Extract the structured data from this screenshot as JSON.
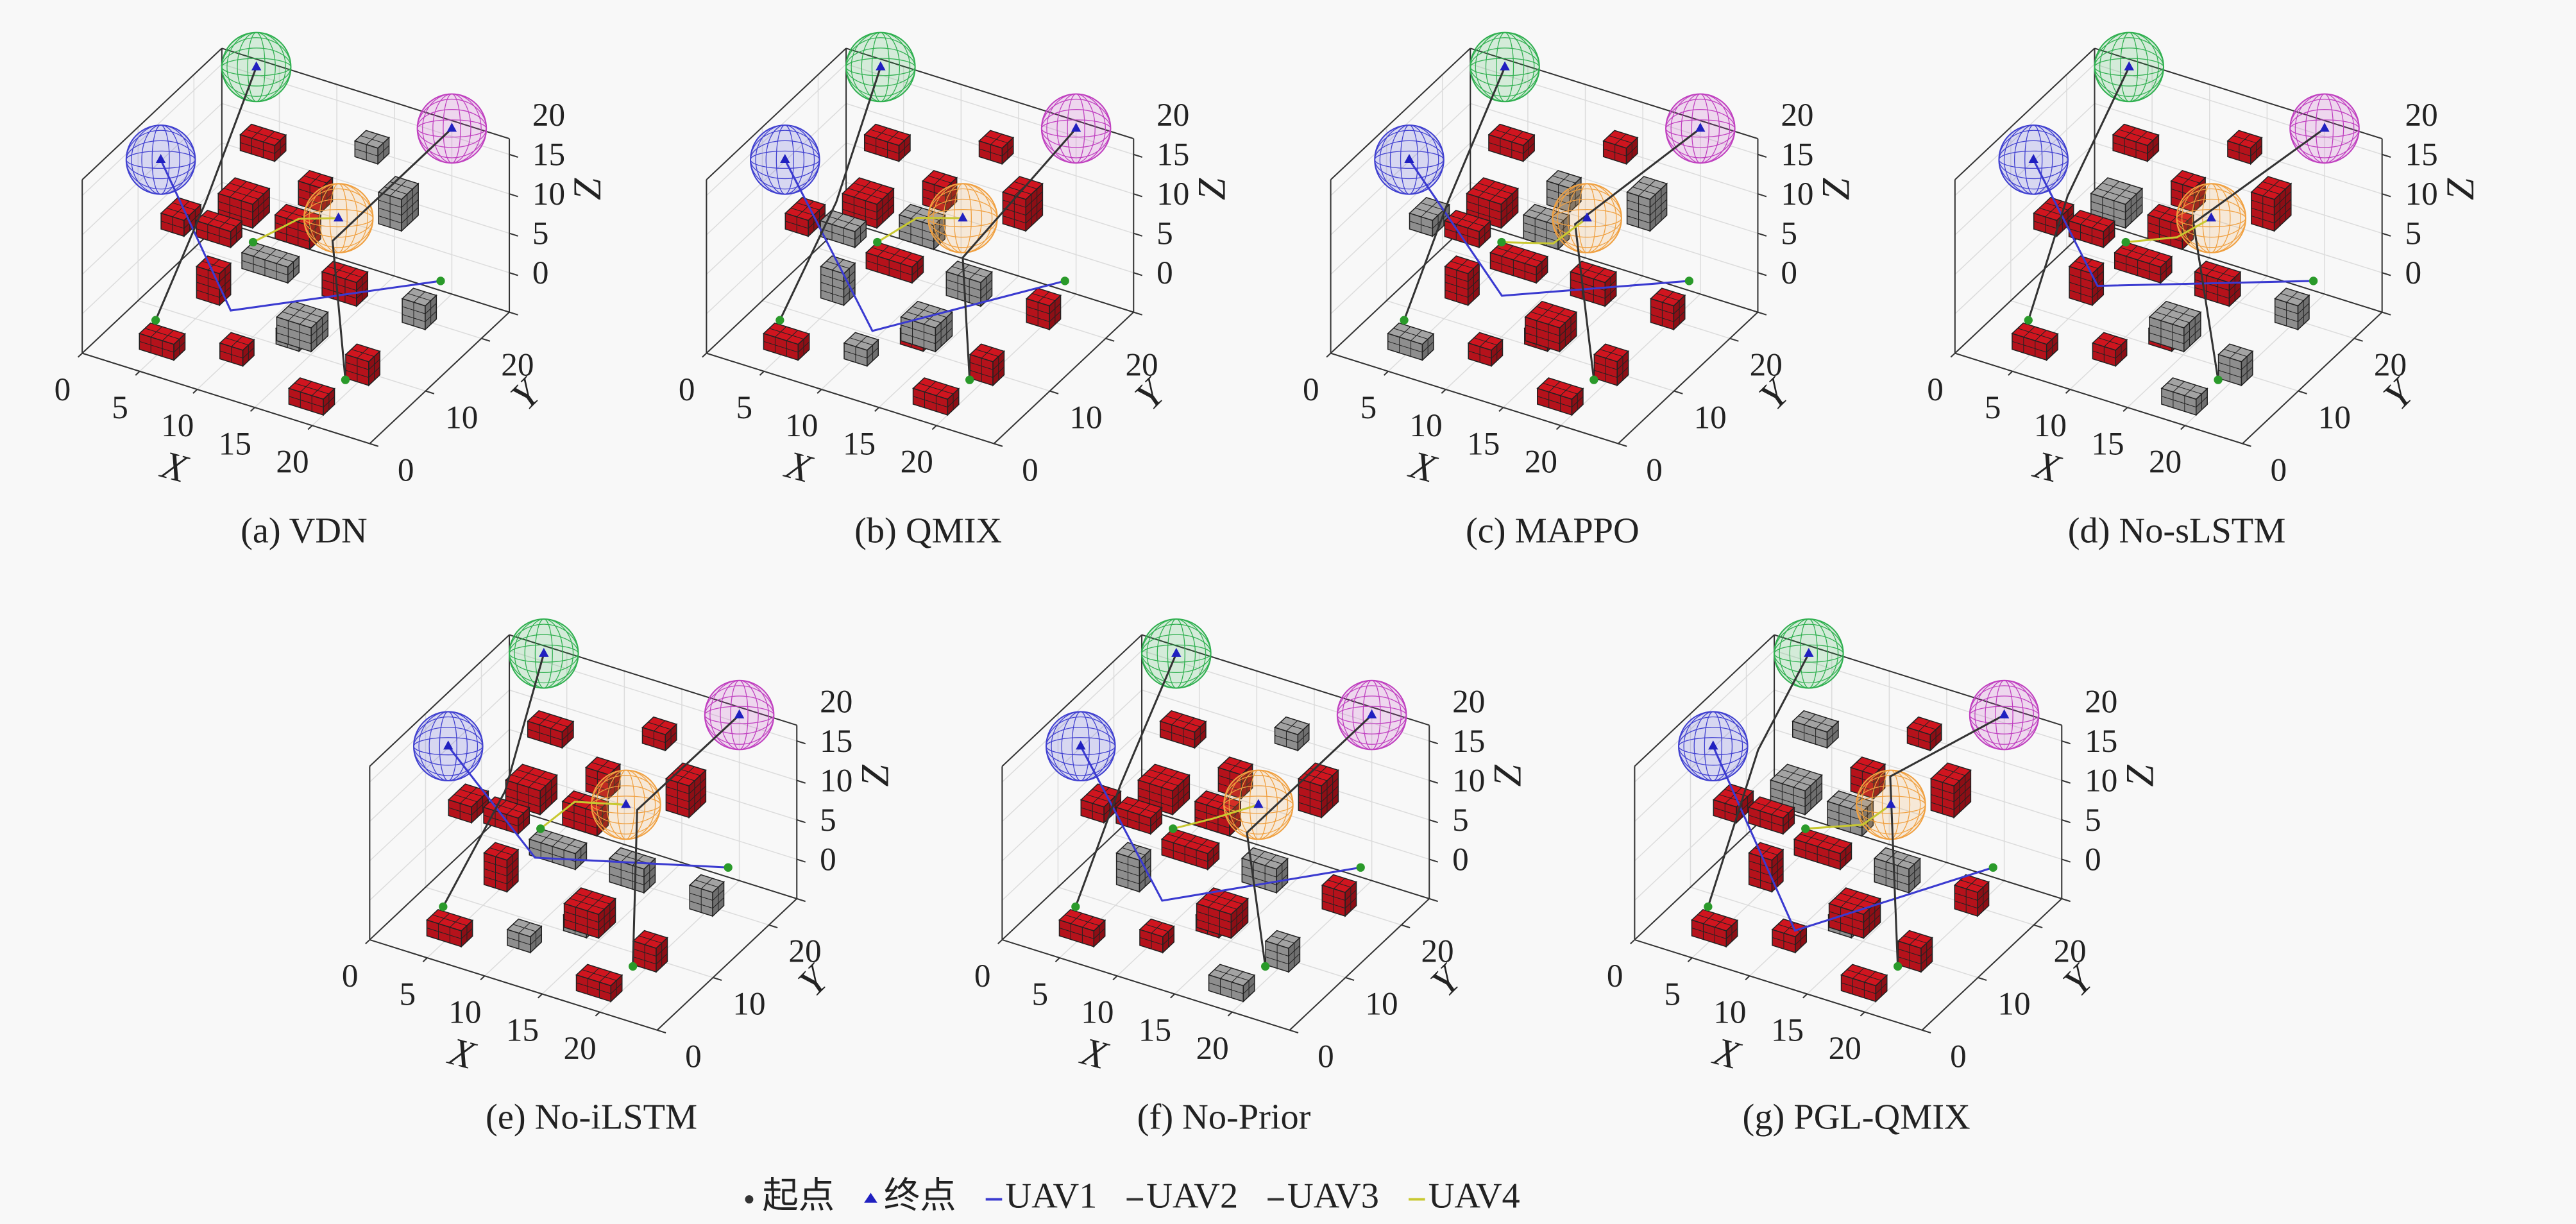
{
  "environment": {
    "obstacles": [
      [
        4,
        2,
        1,
        3,
        2,
        2
      ],
      [
        8,
        4,
        8,
        2,
        2,
        4
      ],
      [
        10,
        8,
        10,
        4,
        2,
        2
      ],
      [
        6,
        12,
        12,
        3,
        3,
        3
      ],
      [
        12,
        14,
        15,
        2,
        2,
        3
      ],
      [
        14,
        6,
        4,
        3,
        3,
        3
      ],
      [
        16,
        10,
        8,
        3,
        2,
        3
      ],
      [
        18,
        16,
        14,
        2,
        3,
        4
      ],
      [
        20,
        6,
        2,
        2,
        2,
        3
      ],
      [
        11,
        2,
        3,
        2,
        2,
        2
      ],
      [
        5,
        18,
        16,
        3,
        2,
        2
      ],
      [
        14,
        20,
        18,
        2,
        2,
        2
      ],
      [
        9,
        16,
        8,
        3,
        2,
        3
      ],
      [
        22,
        12,
        6,
        2,
        2,
        3
      ],
      [
        2,
        10,
        10,
        2,
        3,
        2
      ],
      [
        17,
        2,
        0,
        3,
        2,
        2
      ],
      [
        12,
        10,
        0,
        2,
        2,
        2
      ],
      [
        7,
        6,
        14,
        3,
        2,
        2
      ]
    ],
    "goals": [
      {
        "x": 1,
        "y": 12,
        "z": 17,
        "r": 4,
        "color": "#4040d0"
      },
      {
        "x": 3,
        "y": 25,
        "z": 21,
        "r": 4,
        "color": "#30b050"
      },
      {
        "x": 20,
        "y": 25,
        "z": 21,
        "r": 4,
        "color": "#c040c0"
      },
      {
        "x": 15,
        "y": 15,
        "z": 14,
        "r": 4,
        "color": "#f0a040"
      }
    ]
  },
  "legend": [
    {
      "name": "起点",
      "color": "#333333",
      "marker": "dot"
    },
    {
      "name": "终点",
      "color": "#2020c0",
      "marker": "triangle"
    },
    {
      "name": "UAV1",
      "color": "#3a3ad0",
      "marker": "line"
    },
    {
      "name": "UAV2",
      "color": "#333333",
      "marker": "line"
    },
    {
      "name": "UAV3",
      "color": "#333333",
      "marker": "line"
    },
    {
      "name": "UAV4",
      "color": "#c8c830",
      "marker": "line"
    }
  ],
  "chart_data": [
    {
      "type": "voxel3d",
      "caption": "(a) VDN",
      "xlabel": "X",
      "ylabel": "Y",
      "zlabel": "Z",
      "xlim": [
        0,
        25
      ],
      "ylim": [
        0,
        25
      ],
      "zlim": [
        0,
        22
      ],
      "xticks": [
        0,
        5,
        10,
        15,
        20
      ],
      "yticks": [
        0,
        10,
        20
      ],
      "zticks": [
        0,
        5,
        10,
        15,
        20
      ],
      "obstacle_colors": [
        "#b5121b",
        "#b5121b",
        "#8e8e8e",
        "#b5121b",
        "#b5121b",
        "#8e8e8e",
        "#b5121b",
        "#8e8e8e",
        "#b5121b",
        "#b5121b",
        "#b5121b",
        "#8e8e8e",
        "#b5121b",
        "#8e8e8e",
        "#b5121b",
        "#b5121b",
        "#8e8e8e",
        "#b5121b"
      ],
      "paths": [
        {
          "color": "#3a3ad0",
          "x": [
            20,
            10,
            1
          ],
          "y": [
            23,
            6,
            12
          ],
          "z": [
            3,
            6,
            17
          ]
        },
        {
          "color": "#333333",
          "x": [
            2.5,
            3,
            3
          ],
          "y": [
            8,
            16,
            25
          ],
          "z": [
            0,
            10,
            21
          ]
        },
        {
          "color": "#333333",
          "x": [
            19,
            14,
            20
          ],
          "y": [
            8,
            16,
            25
          ],
          "z": [
            0,
            10,
            21
          ]
        },
        {
          "color": "#c8c830",
          "x": [
            10,
            13,
            15
          ],
          "y": [
            10,
            12,
            15
          ],
          "z": [
            12,
            15,
            14
          ]
        }
      ]
    },
    {
      "type": "voxel3d",
      "caption": "(b) QMIX",
      "xlabel": "X",
      "ylabel": "Y",
      "zlabel": "Z",
      "xlim": [
        0,
        25
      ],
      "ylim": [
        0,
        25
      ],
      "zlim": [
        0,
        22
      ],
      "xticks": [
        0,
        5,
        10,
        15,
        20
      ],
      "yticks": [
        0,
        10,
        20
      ],
      "zticks": [
        0,
        5,
        10,
        15,
        20
      ],
      "obstacle_colors": [
        "#b5121b",
        "#8e8e8e",
        "#b5121b",
        "#b5121b",
        "#b5121b",
        "#8e8e8e",
        "#8e8e8e",
        "#b5121b",
        "#b5121b",
        "#8e8e8e",
        "#b5121b",
        "#b5121b",
        "#8e8e8e",
        "#b5121b",
        "#b5121b",
        "#b5121b",
        "#b5121b",
        "#8e8e8e"
      ],
      "paths": [
        {
          "color": "#3a3ad0",
          "x": [
            20,
            12,
            1
          ],
          "y": [
            23,
            5,
            12
          ],
          "z": [
            3,
            5,
            17
          ]
        },
        {
          "color": "#333333",
          "x": [
            2.5,
            4,
            3
          ],
          "y": [
            8,
            15,
            25
          ],
          "z": [
            0,
            11,
            21
          ]
        },
        {
          "color": "#333333",
          "x": [
            19,
            15,
            20
          ],
          "y": [
            8,
            15,
            25
          ],
          "z": [
            0,
            9,
            21
          ]
        },
        {
          "color": "#c8c830",
          "x": [
            10,
            12,
            15
          ],
          "y": [
            10,
            13,
            15
          ],
          "z": [
            12,
            14,
            14
          ]
        }
      ]
    },
    {
      "type": "voxel3d",
      "caption": "(c) MAPPO",
      "xlabel": "X",
      "ylabel": "Y",
      "zlabel": "Z",
      "xlim": [
        0,
        25
      ],
      "ylim": [
        0,
        25
      ],
      "zlim": [
        0,
        22
      ],
      "xticks": [
        0,
        5,
        10,
        15,
        20
      ],
      "yticks": [
        0,
        10,
        20
      ],
      "zticks": [
        0,
        5,
        10,
        15,
        20
      ],
      "obstacle_colors": [
        "#8e8e8e",
        "#b5121b",
        "#b5121b",
        "#b5121b",
        "#8e8e8e",
        "#b5121b",
        "#b5121b",
        "#8e8e8e",
        "#b5121b",
        "#b5121b",
        "#b5121b",
        "#b5121b",
        "#8e8e8e",
        "#b5121b",
        "#8e8e8e",
        "#b5121b",
        "#b5121b",
        "#b5121b"
      ],
      "paths": [
        {
          "color": "#3a3ad0",
          "x": [
            20,
            11,
            1
          ],
          "y": [
            23,
            8,
            12
          ],
          "z": [
            3,
            7,
            17
          ]
        },
        {
          "color": "#333333",
          "x": [
            2.5,
            2,
            3
          ],
          "y": [
            8,
            17,
            25
          ],
          "z": [
            0,
            9,
            21
          ]
        },
        {
          "color": "#333333",
          "x": [
            19,
            13,
            20
          ],
          "y": [
            8,
            17,
            25
          ],
          "z": [
            0,
            11,
            21
          ]
        },
        {
          "color": "#c8c830",
          "x": [
            10,
            14,
            15
          ],
          "y": [
            10,
            11,
            15
          ],
          "z": [
            12,
            13,
            14
          ]
        }
      ]
    },
    {
      "type": "voxel3d",
      "caption": "(d) No-sLSTM",
      "xlabel": "X",
      "ylabel": "Y",
      "zlabel": "Z",
      "xlim": [
        0,
        25
      ],
      "ylim": [
        0,
        25
      ],
      "zlim": [
        0,
        22
      ],
      "xticks": [
        0,
        5,
        10,
        15,
        20
      ],
      "yticks": [
        0,
        10,
        20
      ],
      "zticks": [
        0,
        5,
        10,
        15,
        20
      ],
      "obstacle_colors": [
        "#b5121b",
        "#b5121b",
        "#b5121b",
        "#8e8e8e",
        "#b5121b",
        "#8e8e8e",
        "#b5121b",
        "#b5121b",
        "#8e8e8e",
        "#b5121b",
        "#b5121b",
        "#b5121b",
        "#b5121b",
        "#8e8e8e",
        "#b5121b",
        "#8e8e8e",
        "#b5121b",
        "#b5121b"
      ],
      "paths": [
        {
          "color": "#3a3ad0",
          "x": [
            20,
            9,
            1
          ],
          "y": [
            23,
            7,
            12
          ],
          "z": [
            3,
            8,
            17
          ]
        },
        {
          "color": "#333333",
          "x": [
            2.5,
            3,
            3
          ],
          "y": [
            8,
            14,
            25
          ],
          "z": [
            0,
            12,
            21
          ]
        },
        {
          "color": "#333333",
          "x": [
            19,
            12,
            20
          ],
          "y": [
            8,
            18,
            25
          ],
          "z": [
            0,
            10,
            21
          ]
        },
        {
          "color": "#c8c830",
          "x": [
            10,
            13,
            15
          ],
          "y": [
            10,
            13,
            15
          ],
          "z": [
            12,
            12,
            14
          ]
        }
      ]
    },
    {
      "type": "voxel3d",
      "caption": "(e) No-iLSTM",
      "xlabel": "X",
      "ylabel": "Y",
      "zlabel": "Z",
      "xlim": [
        0,
        25
      ],
      "ylim": [
        0,
        25
      ],
      "zlim": [
        0,
        22
      ],
      "xticks": [
        0,
        5,
        10,
        15,
        20
      ],
      "yticks": [
        0,
        10,
        20
      ],
      "zticks": [
        0,
        5,
        10,
        15,
        20
      ],
      "obstacle_colors": [
        "#b5121b",
        "#b5121b",
        "#8e8e8e",
        "#b5121b",
        "#b5121b",
        "#b5121b",
        "#8e8e8e",
        "#b5121b",
        "#b5121b",
        "#8e8e8e",
        "#b5121b",
        "#b5121b",
        "#b5121b",
        "#8e8e8e",
        "#b5121b",
        "#b5121b",
        "#8e8e8e",
        "#b5121b"
      ],
      "paths": [
        {
          "color": "#3a3ad0",
          "x": [
            20,
            10,
            1
          ],
          "y": [
            23,
            9,
            12
          ],
          "z": [
            3,
            9,
            17
          ]
        },
        {
          "color": "#333333",
          "x": [
            2.5,
            4,
            3
          ],
          "y": [
            8,
            16,
            25
          ],
          "z": [
            0,
            10,
            21
          ]
        },
        {
          "color": "#333333",
          "x": [
            19,
            15,
            20
          ],
          "y": [
            8,
            17,
            25
          ],
          "z": [
            0,
            12,
            21
          ]
        },
        {
          "color": "#c8c830",
          "x": [
            10,
            12,
            15
          ],
          "y": [
            10,
            12,
            15
          ],
          "z": [
            12,
            15,
            14
          ]
        }
      ]
    },
    {
      "type": "voxel3d",
      "caption": "(f) No-Prior",
      "xlabel": "X",
      "ylabel": "Y",
      "zlabel": "Z",
      "xlim": [
        0,
        25
      ],
      "ylim": [
        0,
        25
      ],
      "zlim": [
        0,
        22
      ],
      "xticks": [
        0,
        5,
        10,
        15,
        20
      ],
      "yticks": [
        0,
        10,
        20
      ],
      "zticks": [
        0,
        5,
        10,
        15,
        20
      ],
      "obstacle_colors": [
        "#b5121b",
        "#8e8e8e",
        "#b5121b",
        "#b5121b",
        "#b5121b",
        "#b5121b",
        "#8e8e8e",
        "#b5121b",
        "#8e8e8e",
        "#b5121b",
        "#b5121b",
        "#8e8e8e",
        "#b5121b",
        "#b5121b",
        "#b5121b",
        "#8e8e8e",
        "#b5121b",
        "#b5121b"
      ],
      "paths": [
        {
          "color": "#3a3ad0",
          "x": [
            20,
            11,
            1
          ],
          "y": [
            23,
            6,
            12
          ],
          "z": [
            3,
            6,
            17
          ]
        },
        {
          "color": "#333333",
          "x": [
            2.5,
            3,
            3
          ],
          "y": [
            8,
            15,
            25
          ],
          "z": [
            0,
            11,
            21
          ]
        },
        {
          "color": "#333333",
          "x": [
            19,
            14,
            20
          ],
          "y": [
            8,
            15,
            25
          ],
          "z": [
            0,
            10,
            21
          ]
        },
        {
          "color": "#c8c830",
          "x": [
            10,
            13,
            15
          ],
          "y": [
            10,
            11,
            15
          ],
          "z": [
            12,
            14,
            14
          ]
        }
      ]
    },
    {
      "type": "voxel3d",
      "caption": "(g) PGL-QMIX",
      "xlabel": "X",
      "ylabel": "Y",
      "zlabel": "Z",
      "xlim": [
        0,
        25
      ],
      "ylim": [
        0,
        25
      ],
      "zlim": [
        0,
        22
      ],
      "xticks": [
        0,
        5,
        10,
        15,
        20
      ],
      "yticks": [
        0,
        10,
        20
      ],
      "zticks": [
        0,
        5,
        10,
        15,
        20
      ],
      "obstacle_colors": [
        "#b5121b",
        "#b5121b",
        "#b5121b",
        "#8e8e8e",
        "#b5121b",
        "#b5121b",
        "#8e8e8e",
        "#b5121b",
        "#b5121b",
        "#b5121b",
        "#8e8e8e",
        "#b5121b",
        "#8e8e8e",
        "#b5121b",
        "#b5121b",
        "#b5121b",
        "#8e8e8e",
        "#b5121b"
      ],
      "paths": [
        {
          "color": "#3a3ad0",
          "x": [
            20,
            12,
            1
          ],
          "y": [
            23,
            4,
            12
          ],
          "z": [
            3,
            4,
            17
          ]
        },
        {
          "color": "#333333",
          "x": [
            2.5,
            2,
            3
          ],
          "y": [
            8,
            18,
            25
          ],
          "z": [
            0,
            13,
            21
          ]
        },
        {
          "color": "#333333",
          "x": [
            19,
            13,
            20
          ],
          "y": [
            8,
            19,
            25
          ],
          "z": [
            0,
            14,
            21
          ]
        },
        {
          "color": "#c8c830",
          "x": [
            10,
            14,
            15
          ],
          "y": [
            10,
            12,
            15
          ],
          "z": [
            12,
            13,
            14
          ]
        }
      ]
    }
  ]
}
